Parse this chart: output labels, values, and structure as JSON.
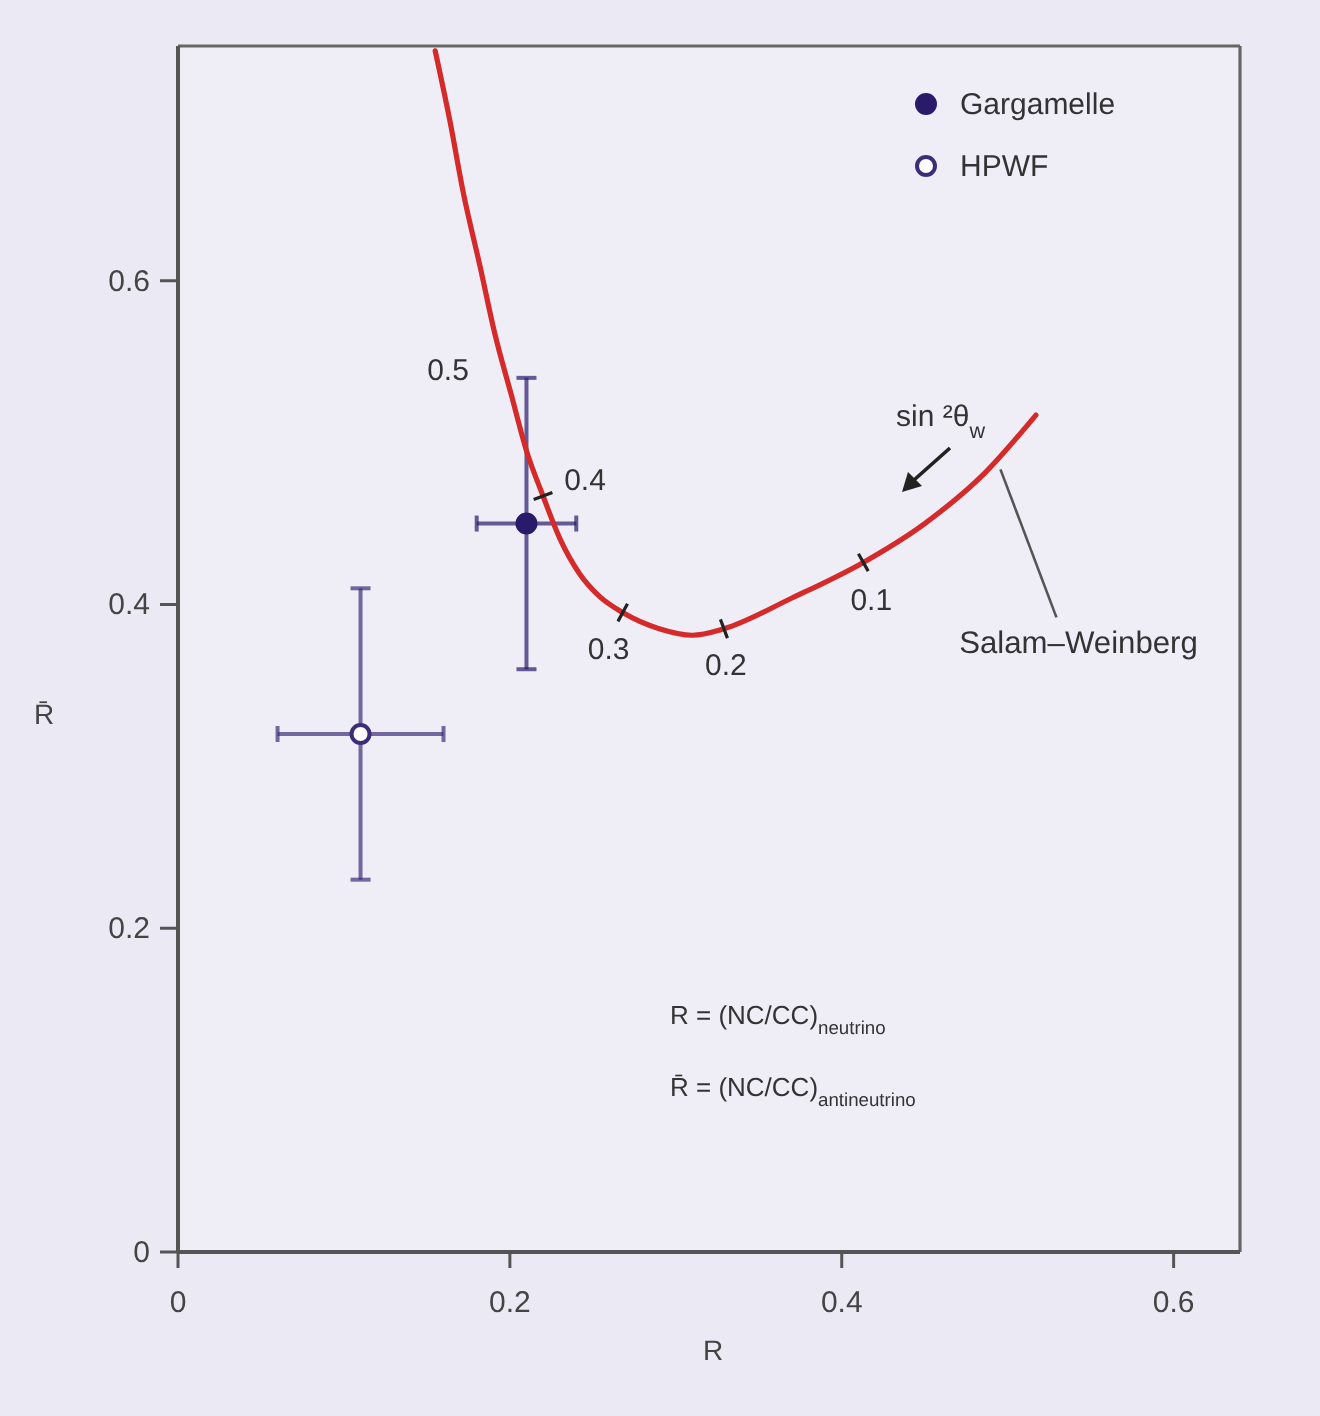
{
  "chart_data": {
    "type": "scatter",
    "xlabel": "R",
    "ylabel": "R̄",
    "xlim": [
      0,
      0.64
    ],
    "ylim": [
      0,
      0.745
    ],
    "xticks": [
      0,
      0.2,
      0.4,
      0.6
    ],
    "yticks": [
      0,
      0.2,
      0.4,
      0.6
    ],
    "legend": "top right",
    "series": [
      {
        "name": "Gargamelle",
        "color": "#2a1a6a",
        "marker": "circle",
        "x": [
          0.21
        ],
        "values": [
          0.45
        ],
        "errors": [
          0.09
        ],
        "xerrors": [
          0.03
        ]
      },
      {
        "name": "HPWF",
        "color": "#3d2d78",
        "colors": [
          "#ffffff"
        ],
        "marker": "circle",
        "x": [
          0.11
        ],
        "values": [
          0.32
        ],
        "errors": [
          0.09
        ],
        "xerrors": [
          0.05
        ]
      },
      {
        "name": "Salam–Weinberg",
        "type": "line",
        "color": "#d42a2a",
        "marker": "none",
        "line_style": "solid",
        "x": [
          0.155,
          0.164,
          0.172,
          0.182,
          0.191,
          0.201,
          0.21,
          0.22,
          0.23,
          0.242,
          0.254,
          0.268,
          0.29,
          0.31,
          0.329,
          0.37,
          0.413,
          0.45,
          0.486,
          0.517
        ],
        "values": [
          0.742,
          0.698,
          0.654,
          0.609,
          0.567,
          0.529,
          0.495,
          0.467,
          0.441,
          0.419,
          0.405,
          0.395,
          0.385,
          0.381,
          0.385,
          0.404,
          0.426,
          0.45,
          0.481,
          0.517
        ]
      }
    ],
    "annotations": [
      {
        "text": "0.4",
        "x": 0.22,
        "y": 0.467
      },
      {
        "text": "0.3",
        "x": 0.268,
        "y": 0.395
      },
      {
        "text": "0.2",
        "x": 0.329,
        "y": 0.385
      },
      {
        "text": "0.1",
        "x": 0.413,
        "y": 0.426
      },
      "0.5",
      "sin ²θ$_{w}$",
      "R = (NC/CC)$_{neutrino}$",
      "R̄ = (NC/CC)$_{antineutrino}$"
    ]
  }
}
